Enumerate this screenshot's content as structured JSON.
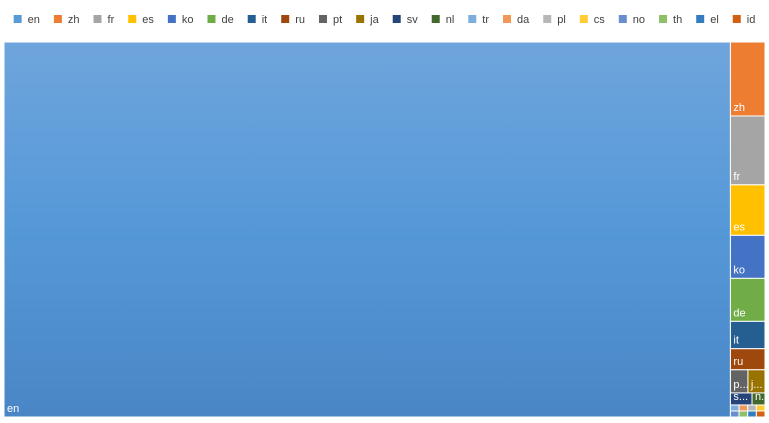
{
  "chart_data": {
    "type": "treemap",
    "title": "",
    "legend_position": "top",
    "categories": [
      "en",
      "zh",
      "fr",
      "es",
      "ko",
      "de",
      "it",
      "ru",
      "pt",
      "ja",
      "sv",
      "nl",
      "tr",
      "da",
      "pl",
      "cs",
      "no",
      "th",
      "el",
      "id"
    ],
    "values": [
      2620,
      24.6,
      22.9,
      16.8,
      14.3,
      14.3,
      9.1,
      7.0,
      3.9,
      3.8,
      2.5,
      1.5,
      0.6,
      0.6,
      0.6,
      0.5,
      0.5,
      0.4,
      0.4,
      0.4
    ],
    "tile_labels": [
      "en",
      "zh",
      "fr",
      "es",
      "ko",
      "de",
      "it",
      "ru",
      "p...",
      "j...",
      "s...",
      "n...",
      "",
      "",
      "",
      "",
      "",
      "",
      "",
      ""
    ],
    "colors": [
      "#5b9bd5",
      "#ed7d31",
      "#a5a5a5",
      "#ffc000",
      "#4472c4",
      "#70ad47",
      "#255e91",
      "#9e480e",
      "#636363",
      "#997300",
      "#264478",
      "#43682b",
      "#7cafdd",
      "#f1975a",
      "#b7b7b7",
      "#ffcd33",
      "#698ed0",
      "#8cc168",
      "#327dc2",
      "#d26012"
    ]
  }
}
